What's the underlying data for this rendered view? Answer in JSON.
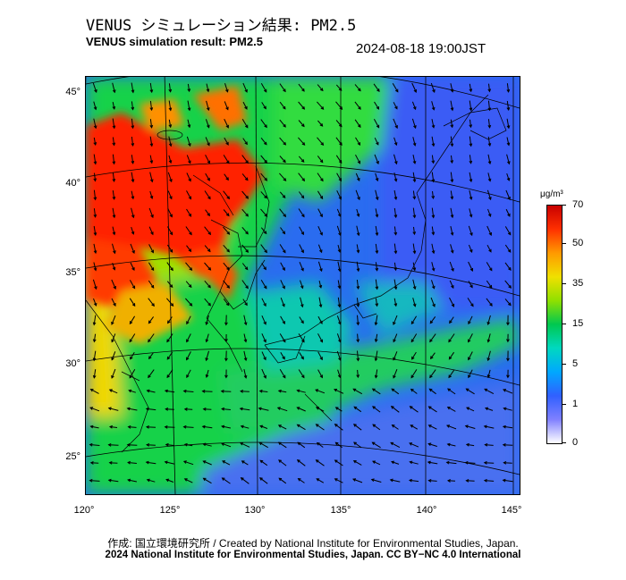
{
  "header": {
    "title_jp": "VENUS シミュレーション結果: PM2.5",
    "title_en": "VENUS simulation result: PM2.5",
    "timestamp": "2024-08-18 19:00JST"
  },
  "map": {
    "latitude_labels": [
      "45°",
      "40°",
      "35°",
      "30°",
      "25°"
    ],
    "longitude_labels": [
      "120°",
      "125°",
      "130°",
      "135°",
      "140°",
      "145°"
    ],
    "wind_arrows": "black",
    "land_outline": "black"
  },
  "colorbar": {
    "unit": "μg/m³",
    "ticks": [
      "70",
      "50",
      "35",
      "15",
      "5",
      "1",
      "0"
    ],
    "colors": [
      "#c80000",
      "#ff3000",
      "#ff9a00",
      "#f0e000",
      "#90e000",
      "#00c850",
      "#00d8c0",
      "#00a8ff",
      "#3060ff",
      "#8080ff",
      "#ffffff"
    ]
  },
  "credits": {
    "line1": "作成: 国立環境研究所 / Created by National Institute for Environmental Studies, Japan.",
    "line2": "2024 National Institute for Environmental Studies, Japan. CC BY−NC 4.0 International"
  }
}
